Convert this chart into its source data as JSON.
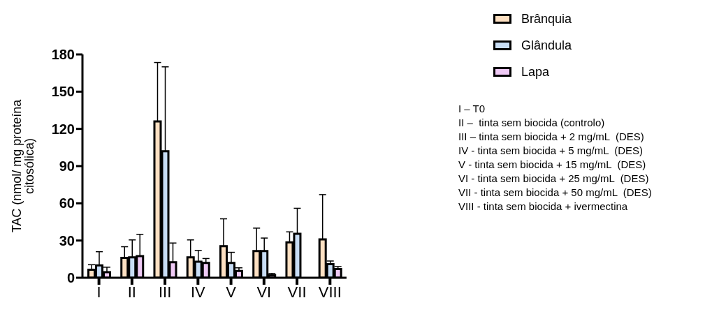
{
  "chart_data": {
    "type": "bar",
    "ylabel": "TAC (nmol/ mg proteína citosólica)",
    "categories": [
      "I",
      "II",
      "III",
      "IV",
      "V",
      "VI",
      "VII",
      "VIII"
    ],
    "series": [
      {
        "name": "Brânquia",
        "color": "#fde0c2",
        "values": [
          6.5,
          16,
          126,
          16.5,
          25.5,
          21.5,
          28.5,
          31
        ],
        "errors": [
          [
            6.5,
            10.5
          ],
          [
            16,
            25
          ],
          [
            126,
            173.5
          ],
          [
            16.5,
            30.5
          ],
          [
            25.5,
            47.5
          ],
          [
            21.5,
            40
          ],
          [
            28.5,
            37
          ],
          [
            31,
            67
          ]
        ]
      },
      {
        "name": "Glândula",
        "color": "#c8ddf5",
        "values": [
          10,
          16.5,
          102,
          13,
          12,
          21.5,
          35.5,
          11
        ],
        "errors": [
          [
            10,
            21
          ],
          [
            16.5,
            30.5
          ],
          [
            102,
            170
          ],
          [
            13,
            22
          ],
          [
            12,
            20.5
          ],
          [
            21.5,
            32
          ],
          [
            35.5,
            56
          ],
          [
            11,
            13.5
          ]
        ]
      },
      {
        "name": "Lapa",
        "color": "#efcaf5",
        "values": [
          4.5,
          17.5,
          12.5,
          12,
          5.5,
          2,
          null,
          7
        ],
        "errors": [
          [
            4.5,
            8.5
          ],
          [
            17.5,
            35
          ],
          [
            12.5,
            28
          ],
          [
            12,
            15.5
          ],
          [
            5.5,
            8
          ],
          [
            2,
            3.5
          ],
          null,
          [
            7,
            9
          ]
        ]
      }
    ],
    "ylim": [
      0,
      180
    ],
    "yticks": [
      0,
      30,
      60,
      90,
      120,
      150,
      180
    ],
    "grid": false,
    "legend": "top right",
    "annotations": [
      "I – T0",
      "II –  tinta sem biocida (controlo)",
      "III – tinta sem biocida + 2 mg/mL  (DES)",
      "IV - tinta sem biocida + 5 mg/mL  (DES)",
      "V - tinta sem biocida + 15 mg/mL  (DES)",
      "VI - tinta sem biocida + 25 mg/mL  (DES)",
      "VII - tinta sem biocida + 50 mg/mL  (DES)",
      "VIII - tinta sem biocida + ivermectina"
    ]
  }
}
